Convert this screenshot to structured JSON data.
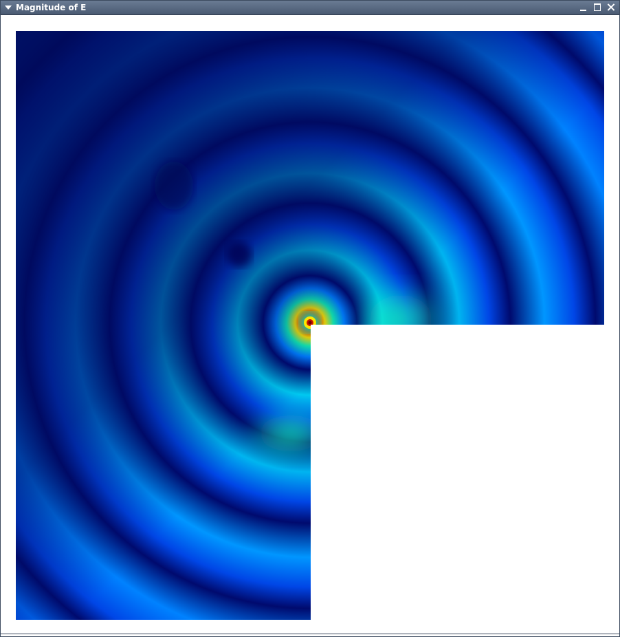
{
  "window": {
    "title": "Magnitude of E",
    "menu_icon": "triangle-down-icon",
    "minimize_icon": "minimize-icon",
    "maximize_icon": "maximize-icon",
    "close_icon": "close-icon"
  },
  "plot": {
    "description_colormap": "jet",
    "colors": {
      "dark": "#000a6e",
      "blue": "#0046e6",
      "mid_blue": "#007dff",
      "cyan": "#00e6f0",
      "green": "#12f2b4",
      "yellow": "#ffe600",
      "red": "#c81400",
      "dark_red": "#6e0000"
    }
  }
}
